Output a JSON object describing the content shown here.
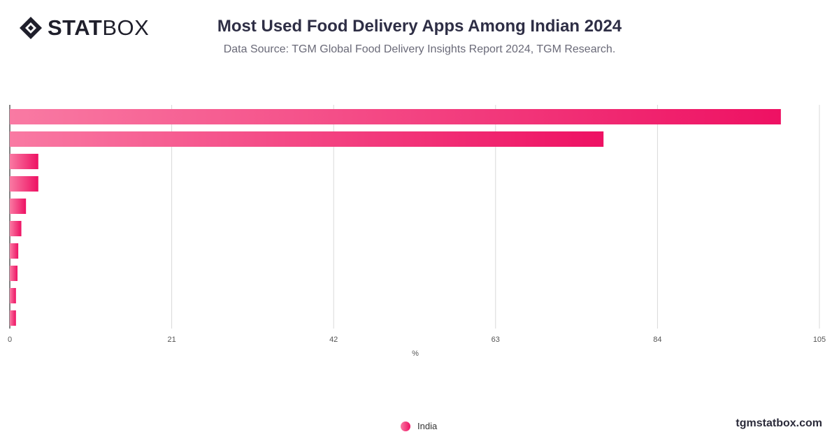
{
  "header": {
    "logo_bold": "STAT",
    "logo_light": "BOX",
    "title": "Most Used Food Delivery Apps Among Indian 2024",
    "subtitle": "Data Source: TGM Global Food Delivery Insights Report 2024, TGM Research."
  },
  "footer": {
    "site": "tgmstatbox.com"
  },
  "colors": {
    "bar_start": "#f97aa3",
    "bar_end": "#ee1163",
    "grid": "#d9d9d9",
    "axis": "#333333"
  },
  "chart_data": {
    "type": "bar",
    "orientation": "horizontal",
    "categories": [
      "",
      "",
      "",
      "",
      "",
      "",
      "",
      "",
      "",
      ""
    ],
    "series": [
      {
        "name": "India",
        "values": [
          100,
          77,
          3.7,
          3.7,
          2.1,
          1.5,
          1.1,
          1.0,
          0.8,
          0.8
        ]
      }
    ],
    "xlabel": "%",
    "xlim": [
      0,
      105
    ],
    "xticks": [
      0,
      21,
      42,
      63,
      84,
      105
    ],
    "grid": true,
    "legend": "bottom-center"
  }
}
